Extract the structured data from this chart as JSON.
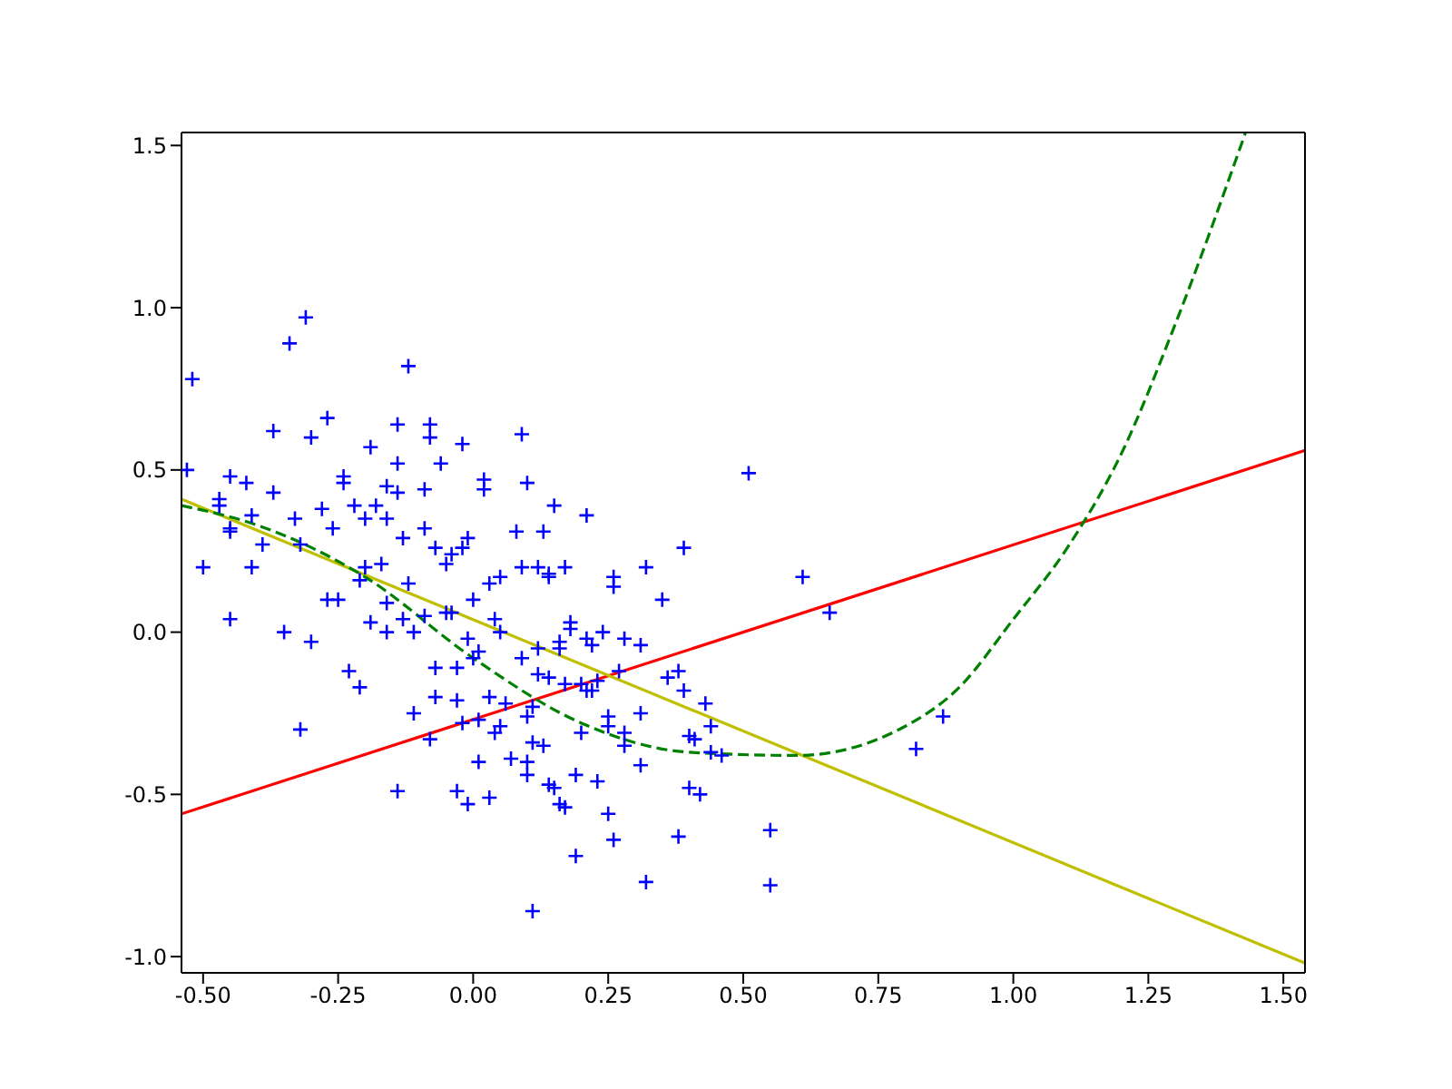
{
  "chart_data": {
    "type": "scatter",
    "xlim": [
      -0.54,
      1.54
    ],
    "ylim": [
      -1.05,
      1.54
    ],
    "xticks": [
      {
        "value": -0.5,
        "label": "-0.50"
      },
      {
        "value": -0.25,
        "label": "-0.25"
      },
      {
        "value": 0,
        "label": "0.00"
      },
      {
        "value": 0.25,
        "label": "0.25"
      },
      {
        "value": 0.5,
        "label": "0.50"
      },
      {
        "value": 0.75,
        "label": "0.75"
      },
      {
        "value": 1,
        "label": "1.00"
      },
      {
        "value": 1.25,
        "label": "1.25"
      },
      {
        "value": 1.5,
        "label": "1.50"
      }
    ],
    "yticks": [
      {
        "value": -1,
        "label": "-1.0"
      },
      {
        "value": -0.5,
        "label": "-0.5"
      },
      {
        "value": 0,
        "label": "0.0"
      },
      {
        "value": 0.5,
        "label": "0.5"
      },
      {
        "value": 1,
        "label": "1.0"
      },
      {
        "value": 1.5,
        "label": "1.5"
      }
    ],
    "grid": false,
    "legend": false,
    "series": [
      {
        "color": "#0000ff",
        "marker": "cross",
        "x": [
          -0.52,
          -0.53,
          -0.5,
          -0.47,
          -0.47,
          -0.45,
          -0.45,
          -0.45,
          -0.45,
          -0.42,
          -0.41,
          -0.41,
          -0.39,
          -0.37,
          -0.37,
          -0.35,
          -0.34,
          -0.33,
          -0.32,
          -0.32,
          -0.31,
          -0.3,
          -0.3,
          -0.28,
          -0.27,
          -0.27,
          -0.26,
          -0.24,
          -0.25,
          -0.24,
          -0.23,
          -0.22,
          -0.21,
          -0.21,
          -0.2,
          -0.2,
          -0.19,
          -0.19,
          -0.18,
          -0.17,
          -0.16,
          -0.16,
          -0.16,
          -0.16,
          -0.14,
          -0.14,
          -0.14,
          -0.14,
          -0.13,
          -0.13,
          -0.12,
          -0.12,
          -0.11,
          -0.11,
          -0.09,
          -0.09,
          -0.09,
          -0.08,
          -0.08,
          -0.08,
          -0.07,
          -0.07,
          -0.07,
          -0.06,
          -0.05,
          -0.05,
          -0.04,
          -0.04,
          -0.03,
          -0.03,
          -0.03,
          -0.02,
          -0.02,
          -0.02,
          -0.01,
          -0.01,
          -0.01,
          0,
          0,
          0.01,
          0.01,
          0.01,
          0.02,
          0.02,
          0.03,
          0.03,
          0.03,
          0.04,
          0.04,
          0.05,
          0.05,
          0.05,
          0.06,
          0.07,
          0.08,
          0.09,
          0.09,
          0.1,
          0.1,
          0.1,
          0.1,
          0.09,
          0.11,
          0.11,
          0.11,
          0.12,
          0.12,
          0.12,
          0.13,
          0.13,
          0.14,
          0.14,
          0.14,
          0.14,
          0.15,
          0.15,
          0.16,
          0.16,
          0.16,
          0.17,
          0.17,
          0.17,
          0.18,
          0.18,
          0.19,
          0.19,
          0.2,
          0.2,
          0.21,
          0.21,
          0.21,
          0.22,
          0.22,
          0.23,
          0.23,
          0.24,
          0.25,
          0.25,
          0.25,
          0.26,
          0.26,
          0.26,
          0.27,
          0.28,
          0.28,
          0.28,
          0.31,
          0.31,
          0.31,
          0.32,
          0.32,
          0.35,
          0.36,
          0.38,
          0.38,
          0.39,
          0.39,
          0.4,
          0.4,
          0.41,
          0.42,
          0.43,
          0.44,
          0.44,
          0.46,
          0.51,
          0.55,
          0.55,
          0.61,
          0.66,
          0.82,
          0.87
        ],
        "values": [
          0.78,
          0.5,
          0.2,
          0.41,
          0.39,
          0.48,
          0.32,
          0.31,
          0.04,
          0.46,
          0.36,
          0.2,
          0.27,
          0.43,
          0.62,
          0,
          0.89,
          0.35,
          0.27,
          -0.3,
          0.97,
          0.6,
          -0.03,
          0.38,
          0.1,
          0.66,
          0.32,
          0.48,
          0.1,
          0.46,
          -0.12,
          0.39,
          -0.17,
          0.16,
          0.35,
          0.2,
          0.03,
          0.57,
          0.39,
          0.21,
          0,
          0.09,
          0.35,
          0.45,
          0.52,
          0.64,
          0.43,
          -0.49,
          0.29,
          0.04,
          0.82,
          0.15,
          0,
          -0.25,
          0.05,
          0.32,
          0.44,
          0.6,
          0.64,
          -0.33,
          0.26,
          -0.11,
          -0.2,
          0.52,
          0.06,
          0.21,
          0.06,
          0.24,
          -0.49,
          -0.11,
          -0.21,
          0.26,
          -0.28,
          0.58,
          0.29,
          -0.53,
          -0.02,
          0.1,
          -0.08,
          -0.27,
          -0.4,
          -0.06,
          0.44,
          0.47,
          -0.2,
          0.15,
          -0.51,
          0.04,
          -0.31,
          0,
          0.17,
          -0.29,
          -0.22,
          -0.39,
          0.31,
          0.2,
          -0.08,
          -0.26,
          -0.4,
          0.46,
          -0.44,
          0.61,
          -0.23,
          -0.34,
          -0.86,
          0.2,
          -0.05,
          -0.13,
          -0.35,
          0.31,
          0.18,
          -0.47,
          0.17,
          -0.14,
          -0.48,
          0.39,
          -0.03,
          -0.53,
          -0.05,
          0.2,
          -0.54,
          -0.16,
          0.01,
          0.03,
          -0.44,
          -0.69,
          -0.31,
          -0.16,
          -0.18,
          0.36,
          -0.02,
          -0.04,
          -0.18,
          -0.15,
          -0.46,
          0,
          -0.26,
          -0.29,
          -0.56,
          -0.64,
          0.14,
          0.17,
          -0.12,
          -0.35,
          -0.02,
          -0.31,
          -0.25,
          -0.04,
          -0.41,
          -0.77,
          0.2,
          0.1,
          -0.14,
          -0.12,
          -0.63,
          0.26,
          -0.18,
          -0.32,
          -0.48,
          -0.33,
          -0.5,
          -0.22,
          -0.37,
          -0.29,
          -0.38,
          0.49,
          -0.61,
          -0.78,
          0.17,
          0.06,
          -0.36,
          -0.26
        ]
      },
      {
        "type": "line",
        "color": "#ff0000",
        "line_style": "solid",
        "x": [
          -0.54,
          1.54
        ],
        "values": [
          -0.56,
          0.56
        ]
      },
      {
        "type": "line",
        "color": "#bfbf00",
        "line_style": "solid",
        "x": [
          -0.54,
          1.54
        ],
        "values": [
          0.41,
          -1.02
        ]
      },
      {
        "type": "line",
        "color": "#008000",
        "line_style": "dashed",
        "x": [
          -0.54,
          -0.4,
          -0.2,
          0,
          0.2,
          0.4,
          0.6,
          0.8,
          0.9,
          1.0,
          1.1,
          1.2,
          1.3,
          1.43
        ],
        "values": [
          0.39,
          0.33,
          0.17,
          -0.08,
          -0.28,
          -0.37,
          -0.38,
          -0.29,
          -0.17,
          0.04,
          0.26,
          0.55,
          0.95,
          1.54
        ]
      }
    ]
  }
}
